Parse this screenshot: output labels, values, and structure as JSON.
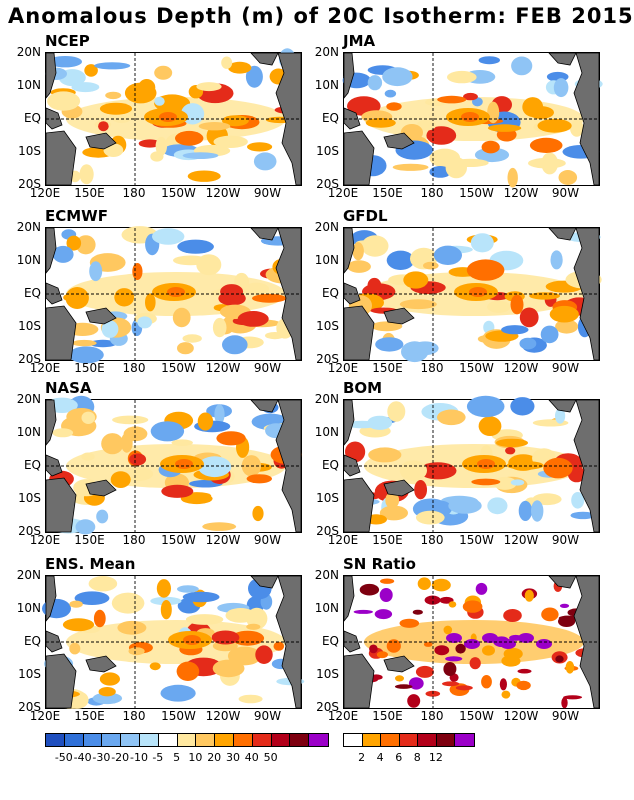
{
  "title": "Anomalous Depth (m) of 20C Isotherm: FEB 2015",
  "panels": [
    {
      "label": "NCEP"
    },
    {
      "label": "JMA"
    },
    {
      "label": "ECMWF"
    },
    {
      "label": "GFDL"
    },
    {
      "label": "NASA"
    },
    {
      "label": "BOM"
    },
    {
      "label": "ENS. Mean"
    },
    {
      "label": "SN Ratio"
    }
  ],
  "axes": {
    "lat_labels": [
      "20N",
      "10N",
      "EQ",
      "10S",
      "20S"
    ],
    "lon_labels": [
      "120E",
      "150E",
      "180",
      "150W",
      "120W",
      "90W"
    ]
  },
  "colorbar_left": {
    "colors": [
      "#1f4fbf",
      "#2f70d8",
      "#4b8de8",
      "#6aa8f0",
      "#8fc4f5",
      "#b8e4fa",
      "#ffffff",
      "#ffe8a0",
      "#ffc860",
      "#ffa400",
      "#ff6f00",
      "#e42b1a",
      "#b3001a",
      "#7e0010",
      "#9b00c8"
    ],
    "labels": [
      "-50",
      "-40",
      "-30",
      "-20",
      "-10",
      "-5",
      "5",
      "10",
      "20",
      "30",
      "40",
      "50"
    ]
  },
  "colorbar_right": {
    "colors": [
      "#ffffff",
      "#ffa400",
      "#ff6f00",
      "#e42b1a",
      "#b3001a",
      "#7e0010",
      "#9b00c8"
    ],
    "labels": [
      "2",
      "4",
      "6",
      "8",
      "12"
    ]
  }
}
